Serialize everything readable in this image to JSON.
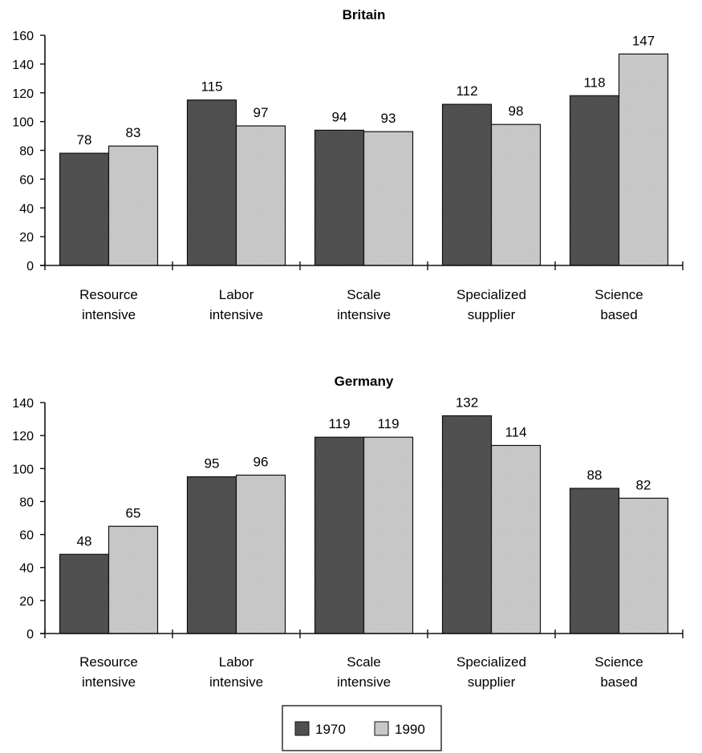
{
  "chart_data": [
    {
      "type": "bar",
      "title": "Britain",
      "categories": [
        "Resource intensive",
        "Labor intensive",
        "Scale intensive",
        "Specialized supplier",
        "Science based"
      ],
      "category_lines": [
        [
          "Resource",
          "intensive"
        ],
        [
          "Labor",
          "intensive"
        ],
        [
          "Scale",
          "intensive"
        ],
        [
          "Specialized",
          "supplier"
        ],
        [
          "Science",
          "based"
        ]
      ],
      "series": [
        {
          "name": "1970",
          "values": [
            78,
            115,
            94,
            112,
            118
          ]
        },
        {
          "name": "1990",
          "values": [
            83,
            97,
            93,
            98,
            147
          ]
        }
      ],
      "ylim": [
        0,
        160
      ],
      "yticks": [
        0,
        20,
        40,
        60,
        80,
        100,
        120,
        140,
        160
      ],
      "xlabel": "",
      "ylabel": "",
      "grid": false
    },
    {
      "type": "bar",
      "title": "Germany",
      "categories": [
        "Resource intensive",
        "Labor intensive",
        "Scale intensive",
        "Specialized supplier",
        "Science based"
      ],
      "category_lines": [
        [
          "Resource",
          "intensive"
        ],
        [
          "Labor",
          "intensive"
        ],
        [
          "Scale",
          "intensive"
        ],
        [
          "Specialized",
          "supplier"
        ],
        [
          "Science",
          "based"
        ]
      ],
      "series": [
        {
          "name": "1970",
          "values": [
            48,
            95,
            119,
            132,
            88
          ]
        },
        {
          "name": "1990",
          "values": [
            65,
            96,
            119,
            114,
            82
          ]
        }
      ],
      "ylim": [
        0,
        140
      ],
      "yticks": [
        0,
        20,
        40,
        60,
        80,
        100,
        120,
        140
      ],
      "xlabel": "",
      "ylabel": "",
      "grid": false
    }
  ],
  "legend": {
    "placement": "bottom-center",
    "items": [
      {
        "label": "1970",
        "color": "#555555"
      },
      {
        "label": "1990",
        "color": "#cccccc"
      }
    ]
  },
  "colors": {
    "series_1970": "#555555",
    "series_1990": "#cccccc",
    "axis": "#111111"
  }
}
